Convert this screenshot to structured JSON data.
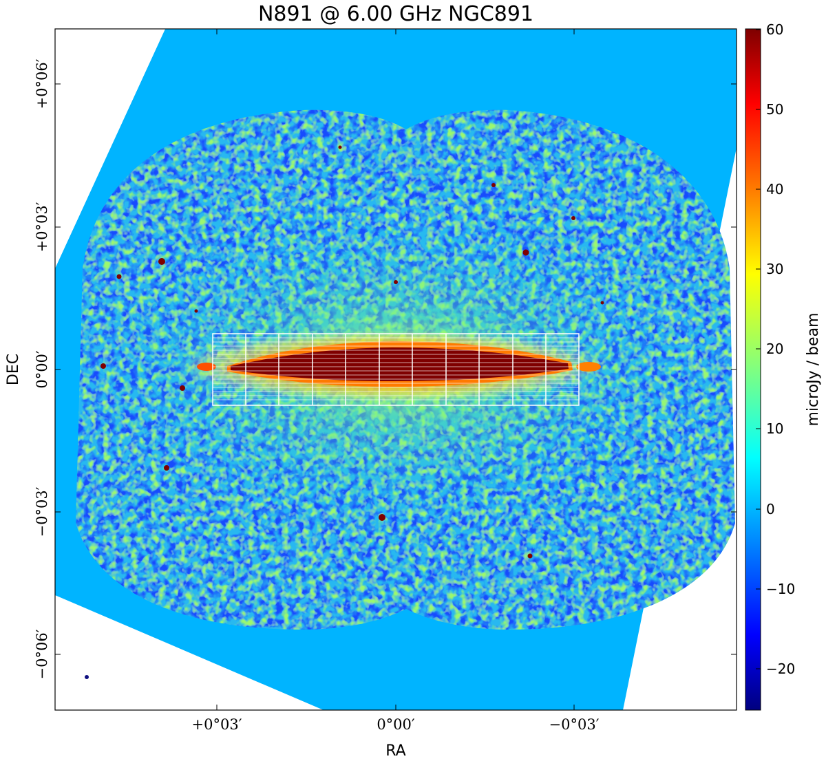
{
  "figure": {
    "title": "N891 @ 6.00 GHz  NGC891",
    "xlabel": "RA",
    "ylabel": "DEC",
    "colorbar_label": "microJy / beam",
    "colormap": "jet",
    "colors": {
      "blank_background": "#00b4ff",
      "source": "#7f0000",
      "box_overlay": "#ffffff"
    }
  },
  "axes": {
    "x_ticks": [
      {
        "value_arcmin": 3,
        "label": "+0°03′"
      },
      {
        "value_arcmin": 0,
        "label": "0°00′"
      },
      {
        "value_arcmin": -3,
        "label": "−0°03′"
      }
    ],
    "y_ticks": [
      {
        "value_arcmin": 6,
        "label": "+0°06′"
      },
      {
        "value_arcmin": 3,
        "label": "+0°03′"
      },
      {
        "value_arcmin": 0,
        "label": "0°00′"
      },
      {
        "value_arcmin": -3,
        "label": "−0°03′"
      },
      {
        "value_arcmin": -6,
        "label": "−0°06′"
      }
    ]
  },
  "colorbar": {
    "min": -25,
    "max": 60,
    "ticks": [
      {
        "value": 60,
        "label": "60"
      },
      {
        "value": 50,
        "label": "50"
      },
      {
        "value": 40,
        "label": "40"
      },
      {
        "value": 30,
        "label": "30"
      },
      {
        "value": 20,
        "label": "20"
      },
      {
        "value": 10,
        "label": "10"
      },
      {
        "value": 0,
        "label": "0"
      },
      {
        "value": -10,
        "label": "−10"
      },
      {
        "value": -20,
        "label": "−20"
      }
    ]
  }
}
